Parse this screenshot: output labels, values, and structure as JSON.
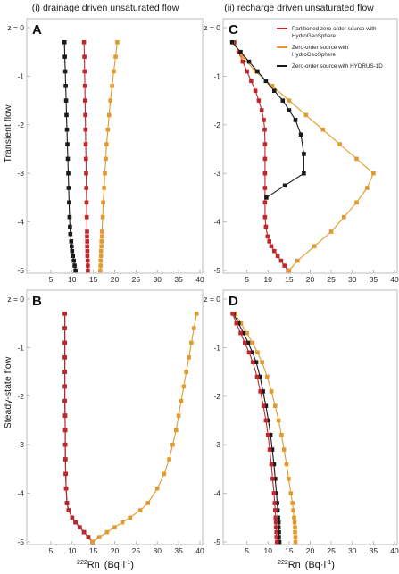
{
  "figure": {
    "col_titles": [
      "(i) drainage driven unsaturated flow",
      "(ii) recharge driven unsaturated flow"
    ],
    "row_labels": [
      "Transient flow",
      "Steady-state flow"
    ],
    "x_label": {
      "prefix": "222",
      "main": "Rn",
      "units": "(Bq·l",
      "units_exp": "-1",
      "units_close": ")"
    },
    "colors": {
      "red": "#c0272d",
      "orange": "#e29a2e",
      "black": "#1a1a1a",
      "frame": "#bdbdbd"
    }
  },
  "chart_data": [
    {
      "panel": "A",
      "type": "line",
      "xlim": [
        0,
        40
      ],
      "ylim": [
        -5,
        0
      ],
      "x_ticks": [
        5,
        10,
        15,
        20,
        25,
        30,
        35,
        40
      ],
      "y_ticks": [
        "z = 0",
        "-1",
        "-2",
        "-3",
        "-4",
        "-5"
      ],
      "series": [
        {
          "color": "black",
          "z": [
            -0.3,
            -0.6,
            -0.9,
            -1.2,
            -1.5,
            -1.8,
            -2.1,
            -2.4,
            -2.7,
            -3.0,
            -3.3,
            -3.6,
            -3.9,
            -4.1,
            -4.25,
            -4.4,
            -4.5,
            -4.6,
            -4.7,
            -4.8,
            -4.9,
            -5.0
          ],
          "x": [
            8.2,
            8.3,
            8.4,
            8.5,
            8.6,
            8.7,
            8.8,
            8.9,
            9.0,
            9.1,
            9.2,
            9.3,
            9.4,
            9.5,
            9.6,
            9.8,
            9.9,
            10.0,
            10.2,
            10.4,
            10.6,
            10.8
          ]
        },
        {
          "color": "red",
          "z": [
            -0.3,
            -0.6,
            -0.9,
            -1.2,
            -1.5,
            -1.8,
            -2.1,
            -2.4,
            -2.7,
            -3.0,
            -3.3,
            -3.6,
            -3.9,
            -4.2,
            -4.3,
            -4.4,
            -4.5,
            -4.6,
            -4.7,
            -4.8,
            -4.9,
            -5.0
          ],
          "x": [
            12.8,
            12.9,
            12.95,
            13.0,
            13.05,
            13.1,
            13.15,
            13.2,
            13.25,
            13.3,
            13.35,
            13.4,
            13.45,
            13.5,
            13.5,
            13.55,
            13.55,
            13.6,
            13.6,
            13.65,
            13.7,
            13.7
          ]
        },
        {
          "color": "orange",
          "z": [
            -0.3,
            -0.6,
            -0.9,
            -1.2,
            -1.5,
            -1.8,
            -2.1,
            -2.4,
            -2.7,
            -3.0,
            -3.3,
            -3.6,
            -3.9,
            -4.2,
            -4.3,
            -4.4,
            -4.5,
            -4.6,
            -4.7,
            -4.8,
            -4.9,
            -5.0
          ],
          "x": [
            20.6,
            20.2,
            19.8,
            19.4,
            19.0,
            18.7,
            18.4,
            18.1,
            17.9,
            17.7,
            17.5,
            17.3,
            17.2,
            17.0,
            17.0,
            16.9,
            16.9,
            16.8,
            16.8,
            16.7,
            16.7,
            16.6
          ]
        }
      ]
    },
    {
      "panel": "B",
      "type": "line",
      "xlim": [
        0,
        40
      ],
      "ylim": [
        -5,
        0
      ],
      "x_ticks": [
        5,
        10,
        15,
        20,
        25,
        30,
        35,
        40
      ],
      "y_ticks": [
        "z = 0",
        "-1",
        "-2",
        "-3",
        "-4",
        "-5"
      ],
      "series": [
        {
          "color": "black",
          "z": [
            -0.3,
            -0.6,
            -0.9,
            -1.2,
            -1.5,
            -1.8,
            -2.1,
            -2.4,
            -2.7,
            -3.0,
            -3.3,
            -3.6,
            -3.9,
            -4.2,
            -4.35,
            -4.5,
            -4.6,
            -4.7,
            -4.8,
            -4.9,
            -5.0
          ],
          "x": [
            8.3,
            8.3,
            8.3,
            8.3,
            8.3,
            8.3,
            8.3,
            8.35,
            8.4,
            8.4,
            8.45,
            8.5,
            8.6,
            8.8,
            9.2,
            10.0,
            10.8,
            11.8,
            12.8,
            13.8,
            14.8
          ]
        },
        {
          "color": "red",
          "z": [
            -0.3,
            -0.6,
            -0.9,
            -1.2,
            -1.5,
            -1.8,
            -2.1,
            -2.4,
            -2.7,
            -3.0,
            -3.3,
            -3.6,
            -3.9,
            -4.2,
            -4.35,
            -4.5,
            -4.6,
            -4.7,
            -4.8,
            -4.9,
            -5.0
          ],
          "x": [
            8.3,
            8.3,
            8.3,
            8.3,
            8.3,
            8.3,
            8.3,
            8.35,
            8.4,
            8.4,
            8.45,
            8.5,
            8.6,
            8.8,
            9.2,
            10.0,
            10.8,
            11.8,
            12.8,
            13.8,
            14.8
          ]
        },
        {
          "color": "orange",
          "z": [
            -0.3,
            -0.6,
            -0.9,
            -1.2,
            -1.5,
            -1.8,
            -2.1,
            -2.4,
            -2.7,
            -3.0,
            -3.3,
            -3.6,
            -3.9,
            -4.2,
            -4.35,
            -4.5,
            -4.6,
            -4.7,
            -4.8,
            -4.9,
            -5.0
          ],
          "x": [
            39.2,
            38.6,
            38.0,
            37.4,
            36.8,
            36.2,
            35.6,
            35.0,
            34.4,
            33.6,
            32.8,
            31.6,
            30.0,
            27.8,
            26.0,
            23.6,
            21.8,
            20.0,
            18.2,
            16.4,
            14.8
          ]
        }
      ]
    },
    {
      "panel": "C",
      "type": "line",
      "xlim": [
        0,
        40
      ],
      "ylim": [
        -5,
        0
      ],
      "x_ticks": [
        5,
        10,
        15,
        20,
        25,
        30,
        35,
        40
      ],
      "y_ticks": [
        "z = 0",
        "-1",
        "-2",
        "-3",
        "-4",
        "-5"
      ],
      "legend": {
        "position": "top-right",
        "entries": [
          {
            "color": "red",
            "lines": [
              "Partitioned zero-order source with",
              "HydroGeoSphere"
            ]
          },
          {
            "color": "orange",
            "lines": [
              "Zero-order source with",
              "HydroGeoSphere"
            ]
          },
          {
            "color": "black",
            "lines": [
              "Zero-order source with HYDRUS-1D"
            ]
          }
        ]
      },
      "series": [
        {
          "color": "red",
          "z": [
            -0.3,
            -0.5,
            -0.7,
            -0.9,
            -1.1,
            -1.3,
            -1.5,
            -1.7,
            -1.9,
            -2.1,
            -2.4,
            -2.7,
            -3.0,
            -3.3,
            -3.6,
            -3.9,
            -4.1,
            -4.3,
            -4.4,
            -4.5,
            -4.6,
            -4.7,
            -4.8,
            -4.9,
            -5.0
          ],
          "x": [
            2.0,
            3.0,
            4.0,
            5.0,
            6.0,
            7.0,
            7.8,
            8.5,
            9.0,
            9.2,
            9.3,
            9.3,
            9.3,
            9.3,
            9.3,
            9.3,
            9.5,
            9.9,
            10.3,
            10.8,
            11.5,
            12.3,
            13.1,
            13.9,
            14.8
          ]
        },
        {
          "color": "orange",
          "z": [
            -0.3,
            -0.6,
            -0.9,
            -1.2,
            -1.5,
            -1.8,
            -2.1,
            -2.4,
            -2.7,
            -3.0,
            -3.3,
            -3.6,
            -3.9,
            -4.2,
            -4.5,
            -4.8,
            -5.0
          ],
          "x": [
            1.6,
            4.0,
            7.0,
            11.0,
            15.0,
            19.0,
            23.0,
            27.0,
            31.0,
            35.0,
            33.5,
            31.0,
            28.0,
            25.0,
            21.0,
            17.0,
            15.0
          ]
        },
        {
          "color": "black",
          "z": [
            -0.3,
            -0.5,
            -0.7,
            -0.9,
            -1.1,
            -1.3,
            -1.5,
            -1.7,
            -1.9,
            -2.2,
            -2.6,
            -3.0,
            -3.25,
            -3.5
          ],
          "x": [
            1.5,
            3.5,
            5.5,
            7.5,
            9.5,
            11.5,
            13.5,
            15.0,
            16.5,
            17.8,
            18.5,
            18.5,
            14.0,
            9.6
          ]
        }
      ]
    },
    {
      "panel": "D",
      "type": "line",
      "xlim": [
        0,
        40
      ],
      "ylim": [
        -5,
        0
      ],
      "x_ticks": [
        5,
        10,
        15,
        20,
        25,
        30,
        35,
        40
      ],
      "y_ticks": [
        "z = 0",
        "-1",
        "-2",
        "-3",
        "-4",
        "-5"
      ],
      "series": [
        {
          "color": "orange",
          "z": [
            -0.3,
            -0.5,
            -0.7,
            -0.9,
            -1.1,
            -1.3,
            -1.6,
            -1.9,
            -2.2,
            -2.5,
            -2.8,
            -3.1,
            -3.4,
            -3.7,
            -4.0,
            -4.2,
            -4.35,
            -4.5,
            -4.6,
            -4.7,
            -4.8,
            -4.9,
            -5.0
          ],
          "x": [
            2.2,
            3.6,
            5.0,
            6.3,
            7.5,
            8.6,
            9.8,
            10.8,
            11.7,
            12.5,
            13.2,
            13.8,
            14.4,
            14.9,
            15.4,
            15.8,
            16.0,
            16.2,
            16.3,
            16.4,
            16.4,
            16.5,
            16.5
          ]
        },
        {
          "color": "black",
          "z": [
            -0.3,
            -0.5,
            -0.7,
            -0.9,
            -1.1,
            -1.3,
            -1.6,
            -1.9,
            -2.2,
            -2.5,
            -2.8,
            -3.1,
            -3.4,
            -3.7,
            -4.0,
            -4.2,
            -4.35,
            -4.5,
            -4.6,
            -4.7,
            -4.8,
            -4.9,
            -5.0
          ],
          "x": [
            1.8,
            3.0,
            4.2,
            5.3,
            6.3,
            7.2,
            8.1,
            8.8,
            9.5,
            10.1,
            10.6,
            11.0,
            11.4,
            11.7,
            12.0,
            12.2,
            12.3,
            12.4,
            12.5,
            12.5,
            12.6,
            12.6,
            12.7
          ]
        },
        {
          "color": "red",
          "z": [
            -0.3,
            -0.5,
            -0.7,
            -0.9,
            -1.1,
            -1.3,
            -1.6,
            -1.9,
            -2.2,
            -2.5,
            -2.8,
            -3.1,
            -3.4,
            -3.7,
            -4.0,
            -4.2,
            -4.35,
            -4.5,
            -4.6,
            -4.7,
            -4.8,
            -4.9,
            -5.0
          ],
          "x": [
            1.6,
            2.5,
            3.5,
            4.5,
            5.5,
            6.4,
            7.4,
            8.2,
            8.9,
            9.5,
            10.0,
            10.4,
            10.8,
            11.1,
            11.4,
            11.6,
            11.7,
            11.8,
            11.9,
            11.9,
            12.0,
            12.0,
            12.1
          ]
        }
      ]
    }
  ]
}
